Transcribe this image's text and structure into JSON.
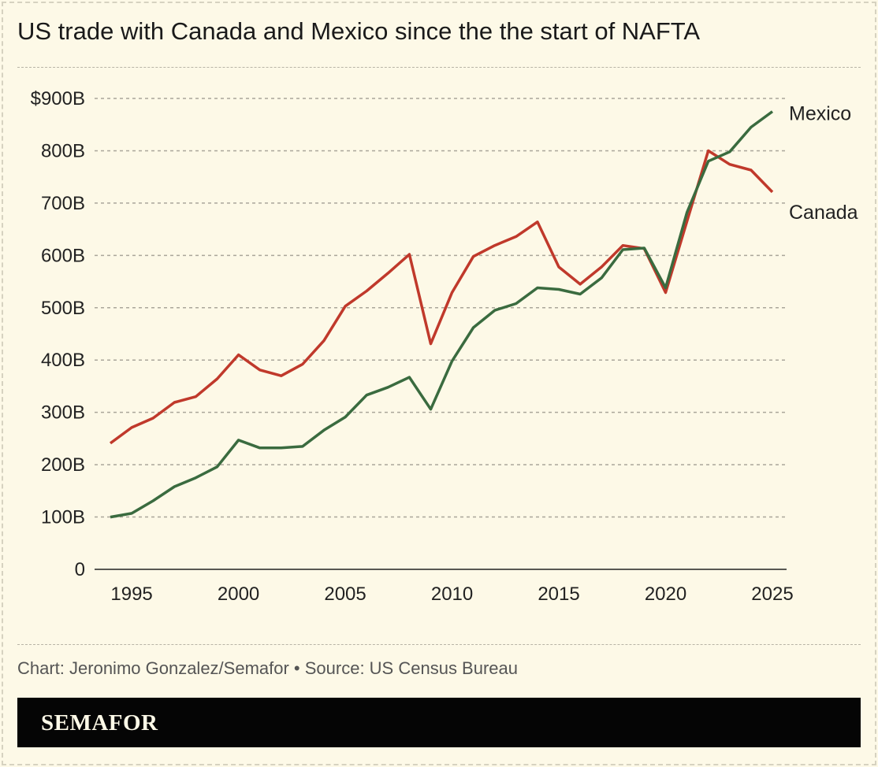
{
  "title": "US trade with Canada and Mexico since the the start of NAFTA",
  "source": "Chart: Jeronimo Gonzalez/Semafor • Source: US Census Bureau",
  "brand": "SEMAFOR",
  "chart_data": {
    "type": "line",
    "title": "US trade with Canada and Mexico since the the start of NAFTA",
    "xlabel": "",
    "ylabel": "",
    "x": [
      1994,
      1995,
      1996,
      1997,
      1998,
      1999,
      2000,
      2001,
      2002,
      2003,
      2004,
      2005,
      2006,
      2007,
      2008,
      2009,
      2010,
      2011,
      2012,
      2013,
      2014,
      2015,
      2016,
      2017,
      2018,
      2019,
      2020,
      2021,
      2022,
      2023,
      2024,
      2025
    ],
    "xticks": [
      1995,
      2000,
      2005,
      2010,
      2015,
      2020,
      2025
    ],
    "xtick_labels": [
      "1995",
      "2000",
      "2005",
      "2010",
      "2015",
      "2020",
      "2025"
    ],
    "ylim": [
      0,
      900
    ],
    "yticks": [
      0,
      100,
      200,
      300,
      400,
      500,
      600,
      700,
      800,
      900
    ],
    "ytick_labels": [
      "0",
      "100B",
      "200B",
      "300B",
      "400B",
      "500B",
      "600B",
      "700B",
      "800B",
      "$900B"
    ],
    "grid": true,
    "legend": "direct labels at line ends",
    "series": [
      {
        "name": "Mexico",
        "color": "#3a6b3f",
        "values": [
          100,
          107,
          131,
          158,
          175,
          196,
          247,
          232,
          232,
          235,
          266,
          291,
          333,
          348,
          367,
          306,
          398,
          462,
          495,
          508,
          538,
          535,
          526,
          557,
          611,
          614,
          538,
          682,
          780,
          798,
          845,
          875
        ]
      },
      {
        "name": "Canada",
        "color": "#c0392b",
        "values": [
          241,
          271,
          289,
          319,
          330,
          364,
          410,
          381,
          370,
          392,
          437,
          503,
          532,
          566,
          602,
          431,
          529,
          598,
          619,
          636,
          664,
          578,
          545,
          578,
          619,
          613,
          529,
          665,
          800,
          774,
          763,
          721
        ]
      }
    ]
  }
}
